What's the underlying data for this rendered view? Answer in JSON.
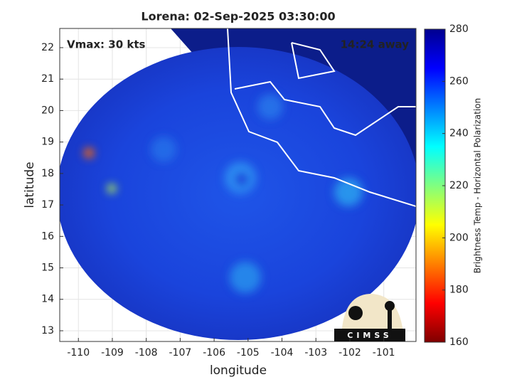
{
  "chart_data": {
    "type": "image",
    "title": "Lorena: 02-Sep-2025 03:30:00",
    "annotations": [
      "Vmax: 30 kts",
      "14:24 away"
    ],
    "xlabel": "longitude",
    "ylabel": "latitude",
    "xlim": [
      -110.55,
      -100.05
    ],
    "xticks": [
      -110,
      -109,
      -108,
      -107,
      -106,
      -105,
      -104,
      -103,
      -102,
      -101
    ],
    "ylim": [
      12.66,
      22.61
    ],
    "yticks": [
      13,
      14,
      15,
      16,
      17,
      18,
      19,
      20,
      21,
      22
    ],
    "grid": true,
    "colorbar": {
      "label": "Brightness Temp - Horizontal Polarization",
      "lim": [
        160,
        280
      ],
      "ticks": [
        160,
        180,
        200,
        220,
        240,
        260,
        280
      ],
      "colors": [
        "#7f0000",
        "#ff0000",
        "#ff8000",
        "#ffff00",
        "#80ff80",
        "#00ffff",
        "#0080ff",
        "#0000ff",
        "#00008f"
      ]
    },
    "logo_text": "CIMSS"
  }
}
